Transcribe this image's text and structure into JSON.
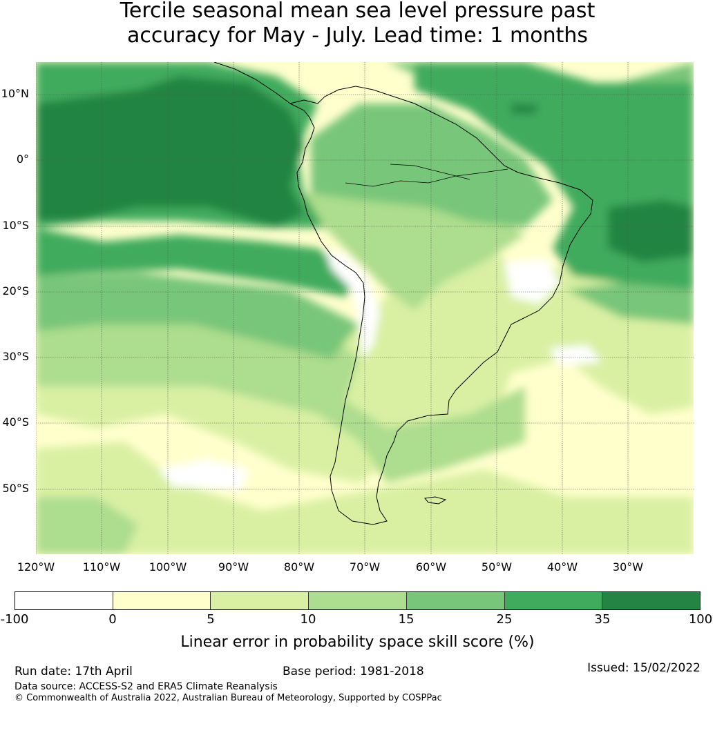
{
  "title": {
    "line1": "Tercile seasonal mean sea level pressure past",
    "line2": "accuracy for May - July. Lead time: 1 months"
  },
  "map": {
    "latitude_labels": [
      "10°N",
      "0°",
      "10°S",
      "20°S",
      "30°S",
      "40°S",
      "50°S"
    ],
    "longitude_labels": [
      "120°W",
      "110°W",
      "100°W",
      "90°W",
      "80°W",
      "70°W",
      "60°W",
      "50°W",
      "40°W",
      "30°W"
    ],
    "gridlines": true,
    "fill_colors": {
      "c_neg": "#ffffff",
      "c0": "#ffffcc",
      "c5": "#d9f0a3",
      "c10": "#addd8e",
      "c15": "#78c679",
      "c25": "#41ab5d",
      "c35": "#238443"
    }
  },
  "colorbar": {
    "colors": [
      "#ffffff",
      "#ffffcc",
      "#d9f0a3",
      "#addd8e",
      "#78c679",
      "#41ab5d",
      "#238443"
    ],
    "tick_labels": [
      "-100",
      "0",
      "5",
      "10",
      "15",
      "25",
      "35",
      "100"
    ],
    "label": "Linear error in probability space skill score (%)"
  },
  "footer": {
    "run_date": "Run date: 17th April",
    "base_period": "Base period: 1981-2018",
    "issued": "Issued: 15/02/2022",
    "data_source": "Data source: ACCESS-S2 and ERA5 Climate Reanalysis",
    "copyright": "© Commonwealth of Australia 2022, Australian Bureau of Meteorology, Supported by COSPPac"
  }
}
